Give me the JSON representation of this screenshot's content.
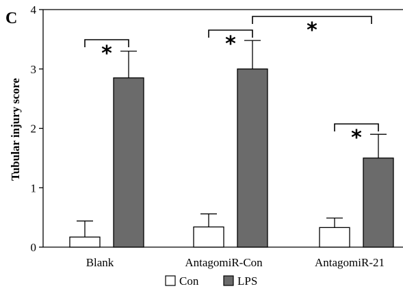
{
  "chart_data": {
    "type": "bar",
    "panel_label": "C",
    "ylabel": "Tubular injury score",
    "xlabel": "",
    "ylim": [
      0,
      4
    ],
    "yticks": [
      "0",
      "1",
      "2",
      "3",
      "4"
    ],
    "categories": [
      "Blank",
      "AntagomiR-Con",
      "AntagomiR-21"
    ],
    "series": [
      {
        "name": "Con",
        "values": [
          0.17,
          0.34,
          0.33
        ],
        "errors": [
          0.27,
          0.22,
          0.16
        ],
        "color": "#ffffff"
      },
      {
        "name": "LPS",
        "values": [
          2.85,
          3.0,
          1.5
        ],
        "errors": [
          0.45,
          0.48,
          0.4
        ],
        "color": "#6b6b6b"
      }
    ],
    "legend": {
      "position": "bottom",
      "entries": [
        "Con",
        "LPS"
      ]
    },
    "significance": [
      {
        "label": "*",
        "from": "Blank-Con",
        "to": "Blank-LPS"
      },
      {
        "label": "*",
        "from": "AntagomiR-Con-Con",
        "to": "AntagomiR-Con-LPS"
      },
      {
        "label": "*",
        "from": "AntagomiR-Con-LPS",
        "to": "AntagomiR-21-LPS"
      },
      {
        "label": "*",
        "from": "AntagomiR-21-Con",
        "to": "AntagomiR-21-LPS"
      }
    ]
  }
}
